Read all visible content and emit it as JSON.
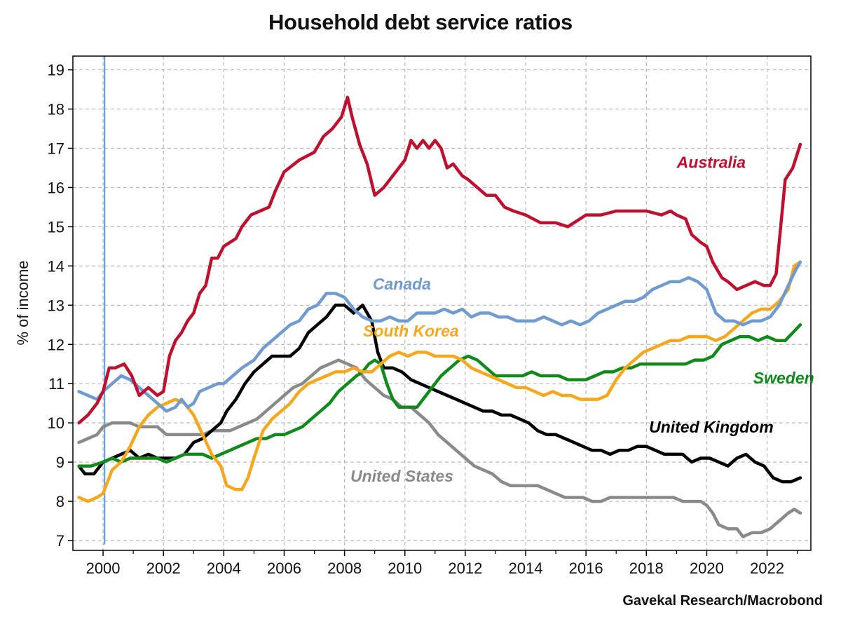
{
  "chart_data": {
    "type": "line",
    "title": "Household debt service ratios",
    "ylabel": "% of income",
    "xlabel": "",
    "source": "Gavekal Research/Macrobond",
    "xlim": [
      1999.0,
      2023.45
    ],
    "ylim": [
      6.75,
      19.35
    ],
    "x_ticks": [
      2000,
      2002,
      2004,
      2006,
      2008,
      2010,
      2012,
      2014,
      2016,
      2018,
      2020,
      2022
    ],
    "y_ticks": [
      7,
      8,
      9,
      10,
      11,
      12,
      13,
      14,
      15,
      16,
      17,
      18,
      19
    ],
    "grid": true,
    "reference_line": {
      "x": 2000.05,
      "color": "#5b9bd5"
    },
    "series": [
      {
        "name": "Australia",
        "color": "#c0102f",
        "x": [
          1999.2,
          1999.5,
          1999.8,
          2000.0,
          2000.2,
          2000.4,
          2000.7,
          2000.95,
          2001.2,
          2001.5,
          2001.8,
          2002.0,
          2002.2,
          2002.4,
          2002.6,
          2002.8,
          2003.0,
          2003.2,
          2003.4,
          2003.6,
          2003.8,
          2004.0,
          2004.2,
          2004.4,
          2004.6,
          2004.9,
          2005.2,
          2005.5,
          2005.7,
          2006.0,
          2006.5,
          2007.0,
          2007.3,
          2007.6,
          2007.9,
          2008.1,
          2008.25,
          2008.5,
          2008.75,
          2009.0,
          2009.3,
          2009.5,
          2009.8,
          2010.0,
          2010.2,
          2010.4,
          2010.6,
          2010.8,
          2011.0,
          2011.2,
          2011.4,
          2011.6,
          2011.9,
          2012.1,
          2012.4,
          2012.7,
          2013.0,
          2013.3,
          2013.6,
          2014.0,
          2014.5,
          2015.0,
          2015.4,
          2015.6,
          2015.8,
          2016.0,
          2016.5,
          2017.0,
          2017.5,
          2018.0,
          2018.5,
          2018.8,
          2019.0,
          2019.3,
          2019.5,
          2019.8,
          2020.0,
          2020.2,
          2020.5,
          2020.7,
          2021.0,
          2021.3,
          2021.6,
          2021.9,
          2022.1,
          2022.3,
          2022.6,
          2022.85,
          2023.1
        ],
        "y": [
          10.0,
          10.2,
          10.5,
          10.8,
          11.4,
          11.4,
          11.5,
          11.2,
          10.7,
          10.9,
          10.7,
          10.8,
          11.7,
          12.1,
          12.3,
          12.6,
          12.8,
          13.3,
          13.5,
          14.2,
          14.2,
          14.5,
          14.6,
          14.7,
          15.0,
          15.3,
          15.4,
          15.5,
          15.9,
          16.4,
          16.7,
          16.9,
          17.3,
          17.5,
          17.8,
          18.3,
          17.8,
          17.1,
          16.6,
          15.8,
          16.0,
          16.2,
          16.5,
          16.7,
          17.2,
          17.0,
          17.2,
          17.0,
          17.2,
          17.0,
          16.5,
          16.6,
          16.3,
          16.2,
          16.0,
          15.8,
          15.8,
          15.5,
          15.4,
          15.3,
          15.1,
          15.1,
          15.0,
          15.1,
          15.2,
          15.3,
          15.3,
          15.4,
          15.4,
          15.4,
          15.3,
          15.4,
          15.3,
          15.2,
          14.8,
          14.6,
          14.5,
          14.1,
          13.7,
          13.6,
          13.4,
          13.5,
          13.6,
          13.5,
          13.5,
          13.8,
          16.2,
          16.5,
          17.1
        ]
      },
      {
        "name": "Canada",
        "color": "#6f9bd0",
        "x": [
          1999.2,
          1999.5,
          1999.8,
          2000.0,
          2000.3,
          2000.6,
          2000.9,
          2001.2,
          2001.5,
          2001.8,
          2002.1,
          2002.4,
          2002.6,
          2002.8,
          2003.0,
          2003.2,
          2003.5,
          2003.8,
          2004.0,
          2004.3,
          2004.6,
          2005.0,
          2005.3,
          2005.6,
          2005.9,
          2006.2,
          2006.5,
          2006.8,
          2007.1,
          2007.4,
          2007.7,
          2008.0,
          2008.3,
          2008.6,
          2008.9,
          2009.2,
          2009.5,
          2009.8,
          2010.1,
          2010.4,
          2010.7,
          2011.0,
          2011.3,
          2011.6,
          2011.9,
          2012.2,
          2012.5,
          2012.8,
          2013.1,
          2013.4,
          2013.7,
          2014.0,
          2014.3,
          2014.6,
          2014.9,
          2015.2,
          2015.5,
          2015.8,
          2016.1,
          2016.4,
          2016.7,
          2017.0,
          2017.3,
          2017.6,
          2017.9,
          2018.2,
          2018.5,
          2018.8,
          2019.1,
          2019.4,
          2019.7,
          2020.0,
          2020.3,
          2020.6,
          2020.9,
          2021.2,
          2021.5,
          2021.8,
          2022.1,
          2022.4,
          2022.7,
          2022.95,
          2023.1
        ],
        "y": [
          10.8,
          10.7,
          10.6,
          10.8,
          11.0,
          11.2,
          11.1,
          10.9,
          10.7,
          10.5,
          10.3,
          10.4,
          10.6,
          10.4,
          10.5,
          10.8,
          10.9,
          11.0,
          11.0,
          11.2,
          11.4,
          11.6,
          11.9,
          12.1,
          12.3,
          12.5,
          12.6,
          12.9,
          13.0,
          13.3,
          13.3,
          13.2,
          12.9,
          12.7,
          12.6,
          12.6,
          12.7,
          12.6,
          12.6,
          12.8,
          12.8,
          12.8,
          12.9,
          12.8,
          12.9,
          12.7,
          12.8,
          12.8,
          12.7,
          12.7,
          12.6,
          12.6,
          12.6,
          12.7,
          12.6,
          12.5,
          12.6,
          12.5,
          12.6,
          12.8,
          12.9,
          13.0,
          13.1,
          13.1,
          13.2,
          13.4,
          13.5,
          13.6,
          13.6,
          13.7,
          13.6,
          13.4,
          12.8,
          12.6,
          12.6,
          12.5,
          12.6,
          12.6,
          12.7,
          13.0,
          13.5,
          13.9,
          14.1
        ]
      },
      {
        "name": "South Korea",
        "color": "#f5a81c",
        "x": [
          1999.2,
          1999.5,
          1999.8,
          2000.0,
          2000.3,
          2000.6,
          2000.9,
          2001.2,
          2001.5,
          2001.8,
          2002.1,
          2002.4,
          2002.7,
          2003.0,
          2003.3,
          2003.6,
          2003.9,
          2004.1,
          2004.4,
          2004.6,
          2004.8,
          2005.0,
          2005.3,
          2005.6,
          2005.9,
          2006.2,
          2006.5,
          2006.8,
          2007.1,
          2007.4,
          2007.7,
          2008.0,
          2008.3,
          2008.6,
          2008.9,
          2009.2,
          2009.5,
          2009.8,
          2010.1,
          2010.4,
          2010.7,
          2011.0,
          2011.3,
          2011.6,
          2011.9,
          2012.2,
          2012.5,
          2012.8,
          2013.1,
          2013.4,
          2013.7,
          2014.0,
          2014.3,
          2014.6,
          2014.9,
          2015.2,
          2015.5,
          2015.8,
          2016.1,
          2016.4,
          2016.7,
          2017.0,
          2017.3,
          2017.6,
          2017.9,
          2018.2,
          2018.5,
          2018.8,
          2019.1,
          2019.4,
          2019.7,
          2020.0,
          2020.3,
          2020.6,
          2020.9,
          2021.2,
          2021.5,
          2021.8,
          2022.1,
          2022.4,
          2022.7,
          2022.9,
          2023.1
        ],
        "y": [
          8.1,
          8.0,
          8.1,
          8.2,
          8.8,
          9.0,
          9.4,
          9.9,
          10.2,
          10.4,
          10.5,
          10.6,
          10.5,
          10.2,
          9.7,
          9.2,
          8.9,
          8.4,
          8.3,
          8.3,
          8.6,
          9.1,
          9.8,
          10.1,
          10.3,
          10.5,
          10.8,
          11.0,
          11.1,
          11.2,
          11.3,
          11.3,
          11.4,
          11.3,
          11.3,
          11.5,
          11.7,
          11.8,
          11.7,
          11.8,
          11.8,
          11.7,
          11.7,
          11.7,
          11.6,
          11.4,
          11.3,
          11.2,
          11.1,
          11.0,
          10.9,
          10.9,
          10.8,
          10.7,
          10.8,
          10.7,
          10.7,
          10.6,
          10.6,
          10.6,
          10.7,
          11.1,
          11.4,
          11.6,
          11.8,
          11.9,
          12.0,
          12.1,
          12.1,
          12.2,
          12.2,
          12.2,
          12.1,
          12.2,
          12.4,
          12.6,
          12.8,
          12.9,
          12.9,
          13.1,
          13.4,
          14.0,
          14.1
        ]
      },
      {
        "name": "Sweden",
        "color": "#118a1c",
        "x": [
          1999.2,
          1999.6,
          2000.0,
          2000.3,
          2000.6,
          2000.9,
          2001.2,
          2001.5,
          2001.8,
          2002.1,
          2002.4,
          2002.7,
          2003.0,
          2003.3,
          2003.6,
          2003.9,
          2004.2,
          2004.5,
          2004.8,
          2005.1,
          2005.4,
          2005.7,
          2006.0,
          2006.3,
          2006.6,
          2006.9,
          2007.2,
          2007.5,
          2007.8,
          2008.1,
          2008.4,
          2008.6,
          2008.8,
          2009.0,
          2009.2,
          2009.4,
          2009.6,
          2009.8,
          2010.0,
          2010.2,
          2010.4,
          2010.6,
          2010.9,
          2011.2,
          2011.5,
          2011.8,
          2012.1,
          2012.4,
          2012.7,
          2013.0,
          2013.3,
          2013.6,
          2013.9,
          2014.2,
          2014.5,
          2014.8,
          2015.1,
          2015.4,
          2015.7,
          2016.0,
          2016.3,
          2016.6,
          2016.9,
          2017.2,
          2017.5,
          2017.8,
          2018.1,
          2018.4,
          2018.7,
          2019.0,
          2019.3,
          2019.6,
          2019.9,
          2020.2,
          2020.5,
          2020.8,
          2021.1,
          2021.4,
          2021.7,
          2022.0,
          2022.3,
          2022.6,
          2022.85,
          2023.1
        ],
        "y": [
          8.9,
          8.9,
          9.0,
          9.1,
          9.0,
          9.1,
          9.1,
          9.1,
          9.1,
          9.0,
          9.1,
          9.2,
          9.2,
          9.2,
          9.1,
          9.2,
          9.3,
          9.4,
          9.5,
          9.6,
          9.6,
          9.7,
          9.7,
          9.8,
          9.9,
          10.1,
          10.3,
          10.5,
          10.8,
          11.0,
          11.2,
          11.3,
          11.5,
          11.6,
          11.5,
          11.0,
          10.6,
          10.4,
          10.4,
          10.4,
          10.4,
          10.6,
          10.9,
          11.2,
          11.4,
          11.6,
          11.7,
          11.6,
          11.4,
          11.2,
          11.2,
          11.2,
          11.2,
          11.3,
          11.2,
          11.2,
          11.2,
          11.1,
          11.1,
          11.1,
          11.2,
          11.3,
          11.3,
          11.4,
          11.4,
          11.5,
          11.5,
          11.5,
          11.5,
          11.5,
          11.5,
          11.6,
          11.6,
          11.7,
          12.0,
          12.1,
          12.2,
          12.2,
          12.1,
          12.2,
          12.1,
          12.1,
          12.3,
          12.5
        ]
      },
      {
        "name": "United Kingdom",
        "color": "#000000",
        "x": [
          1999.2,
          1999.4,
          1999.7,
          2000.0,
          2000.3,
          2000.6,
          2000.9,
          2001.2,
          2001.5,
          2001.8,
          2002.1,
          2002.4,
          2002.7,
          2003.0,
          2003.3,
          2003.6,
          2003.9,
          2004.1,
          2004.4,
          2004.7,
          2005.0,
          2005.3,
          2005.6,
          2005.9,
          2006.2,
          2006.5,
          2006.8,
          2007.1,
          2007.4,
          2007.7,
          2008.0,
          2008.3,
          2008.6,
          2008.9,
          2009.1,
          2009.3,
          2009.6,
          2009.9,
          2010.2,
          2010.5,
          2010.8,
          2011.1,
          2011.4,
          2011.7,
          2012.0,
          2012.3,
          2012.6,
          2012.9,
          2013.2,
          2013.5,
          2013.8,
          2014.1,
          2014.4,
          2014.7,
          2015.0,
          2015.3,
          2015.6,
          2015.9,
          2016.2,
          2016.5,
          2016.8,
          2017.1,
          2017.4,
          2017.7,
          2018.0,
          2018.3,
          2018.6,
          2018.9,
          2019.2,
          2019.5,
          2019.8,
          2020.1,
          2020.4,
          2020.7,
          2021.0,
          2021.3,
          2021.6,
          2021.9,
          2022.2,
          2022.5,
          2022.8,
          2023.1
        ],
        "y": [
          8.9,
          8.7,
          8.7,
          9.0,
          9.1,
          9.2,
          9.3,
          9.1,
          9.2,
          9.1,
          9.1,
          9.1,
          9.2,
          9.5,
          9.6,
          9.8,
          10.0,
          10.3,
          10.6,
          11.0,
          11.3,
          11.5,
          11.7,
          11.7,
          11.7,
          11.9,
          12.3,
          12.5,
          12.7,
          13.0,
          13.0,
          12.8,
          13.0,
          12.6,
          11.8,
          11.4,
          11.4,
          11.3,
          11.1,
          11.0,
          10.9,
          10.8,
          10.7,
          10.6,
          10.5,
          10.4,
          10.3,
          10.3,
          10.2,
          10.2,
          10.1,
          10.0,
          9.8,
          9.7,
          9.7,
          9.6,
          9.5,
          9.4,
          9.3,
          9.3,
          9.2,
          9.3,
          9.3,
          9.4,
          9.4,
          9.3,
          9.2,
          9.2,
          9.2,
          9.0,
          9.1,
          9.1,
          9.0,
          8.9,
          9.1,
          9.2,
          9.0,
          8.9,
          8.6,
          8.5,
          8.5,
          8.6
        ]
      },
      {
        "name": "United States",
        "color": "#8a8a8a",
        "x": [
          1999.2,
          1999.5,
          1999.8,
          2000.0,
          2000.3,
          2000.6,
          2000.9,
          2001.2,
          2001.5,
          2001.8,
          2002.1,
          2002.4,
          2002.7,
          2003.0,
          2003.3,
          2003.6,
          2003.9,
          2004.2,
          2004.5,
          2004.8,
          2005.1,
          2005.4,
          2005.7,
          2006.0,
          2006.3,
          2006.6,
          2006.9,
          2007.2,
          2007.5,
          2007.8,
          2008.1,
          2008.4,
          2008.7,
          2009.0,
          2009.3,
          2009.6,
          2009.9,
          2010.2,
          2010.5,
          2010.8,
          2011.1,
          2011.4,
          2011.7,
          2012.0,
          2012.3,
          2012.6,
          2012.9,
          2013.2,
          2013.5,
          2013.8,
          2014.1,
          2014.4,
          2014.7,
          2015.0,
          2015.3,
          2015.6,
          2015.9,
          2016.2,
          2016.5,
          2016.8,
          2017.1,
          2017.4,
          2017.7,
          2018.0,
          2018.3,
          2018.6,
          2018.9,
          2019.2,
          2019.5,
          2019.8,
          2020.0,
          2020.2,
          2020.4,
          2020.7,
          2021.0,
          2021.2,
          2021.5,
          2021.8,
          2022.1,
          2022.4,
          2022.7,
          2022.9,
          2023.1
        ],
        "y": [
          9.5,
          9.6,
          9.7,
          9.9,
          10.0,
          10.0,
          10.0,
          9.9,
          9.9,
          9.9,
          9.7,
          9.7,
          9.7,
          9.7,
          9.7,
          9.8,
          9.8,
          9.8,
          9.9,
          10.0,
          10.1,
          10.3,
          10.5,
          10.7,
          10.9,
          11.0,
          11.2,
          11.4,
          11.5,
          11.6,
          11.5,
          11.4,
          11.1,
          10.9,
          10.7,
          10.6,
          10.4,
          10.4,
          10.2,
          10.0,
          9.7,
          9.5,
          9.3,
          9.1,
          8.9,
          8.8,
          8.7,
          8.5,
          8.4,
          8.4,
          8.4,
          8.4,
          8.3,
          8.2,
          8.1,
          8.1,
          8.1,
          8.0,
          8.0,
          8.1,
          8.1,
          8.1,
          8.1,
          8.1,
          8.1,
          8.1,
          8.1,
          8.0,
          8.0,
          8.0,
          7.9,
          7.7,
          7.4,
          7.3,
          7.3,
          7.1,
          7.2,
          7.2,
          7.3,
          7.5,
          7.7,
          7.8,
          7.7
        ]
      }
    ],
    "labels": [
      {
        "text": "Australia",
        "x": 2020.15,
        "y": 16.5,
        "color": "#c0102f"
      },
      {
        "text": "Canada",
        "x": 2009.9,
        "y": 13.4,
        "color": "#6f9bd0"
      },
      {
        "text": "South Korea",
        "x": 2010.2,
        "y": 12.2,
        "color": "#f5a81c"
      },
      {
        "text": "Sweden",
        "x": 2022.55,
        "y": 11.0,
        "color": "#118a1c"
      },
      {
        "text": "United Kingdom",
        "x": 2020.15,
        "y": 9.75,
        "color": "#000000"
      },
      {
        "text": "United States",
        "x": 2009.9,
        "y": 8.5,
        "color": "#8a8a8a"
      }
    ]
  }
}
